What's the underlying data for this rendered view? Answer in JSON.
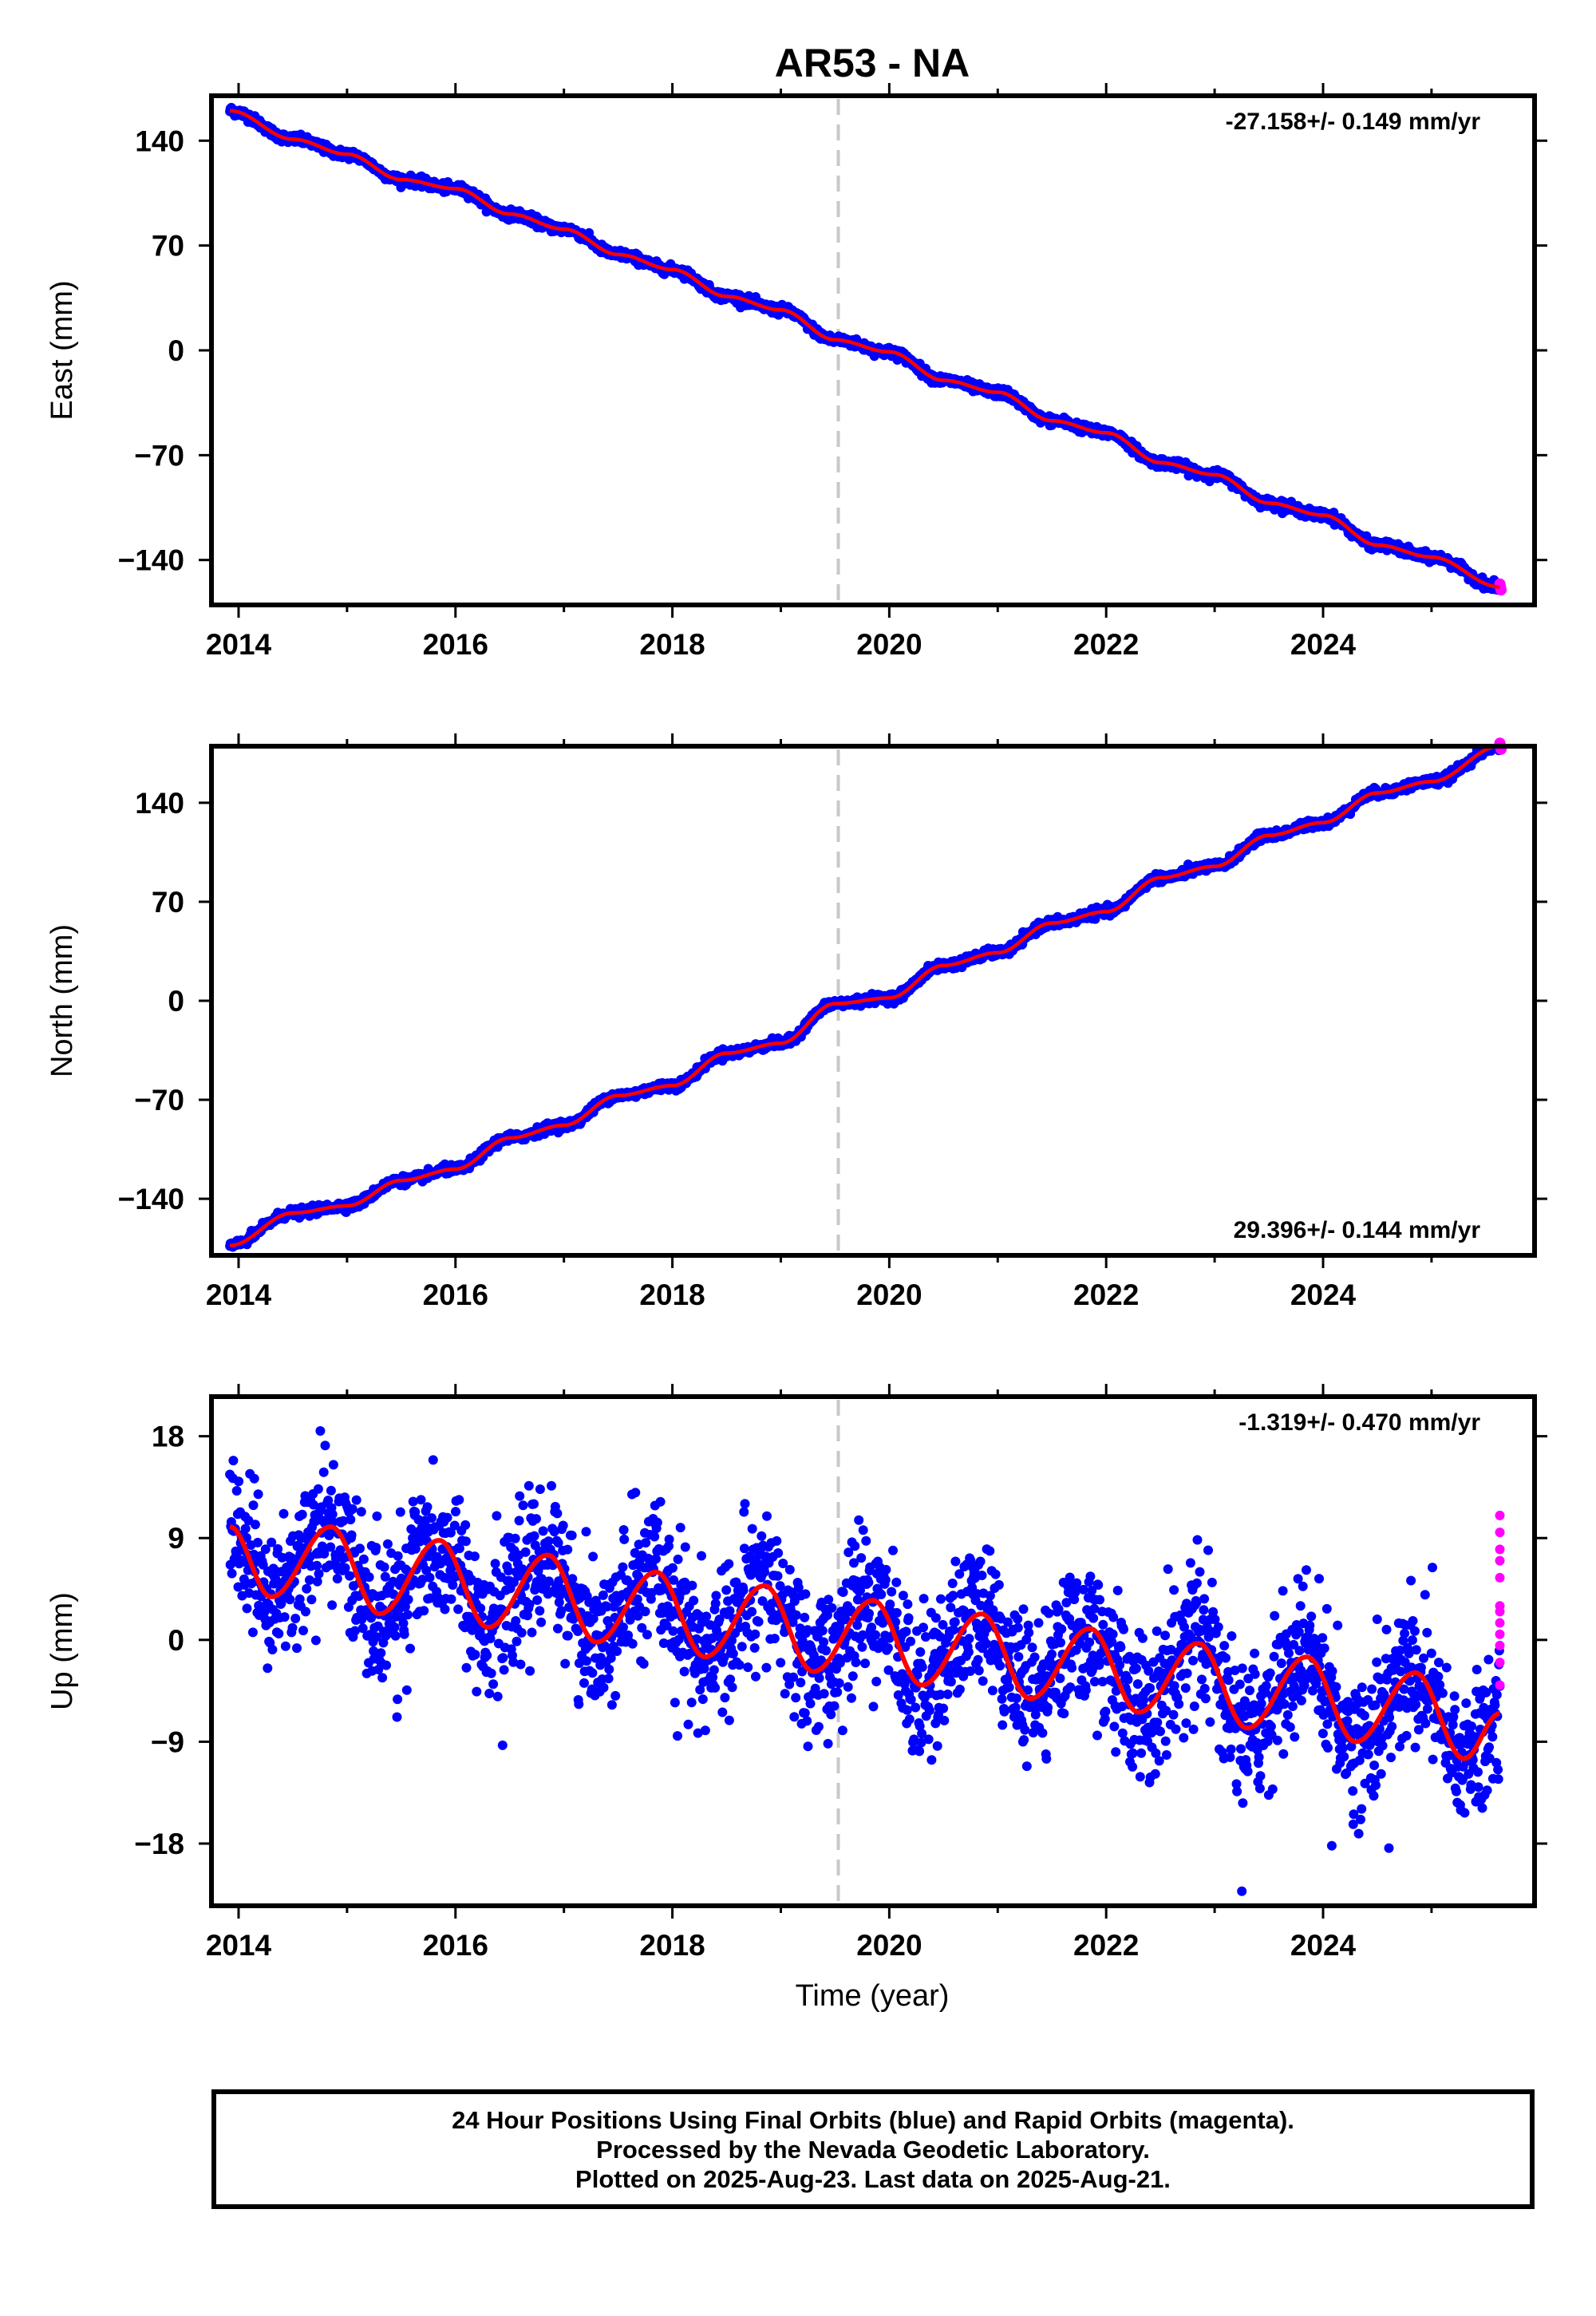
{
  "title": "AR53 - NA",
  "footer": {
    "line1": "24 Hour Positions Using Final Orbits (blue) and Rapid Orbits (magenta).",
    "line2": "Processed by the Nevada Geodetic Laboratory.",
    "line3": "Plotted on 2025-Aug-23. Last data on 2025-Aug-21."
  },
  "chart_data": [
    {
      "type": "scatter",
      "ylabel": "East (mm)",
      "xlabel": "",
      "rate_label": "-27.158+/- 0.149 mm/yr",
      "rate_label_position": "top-right",
      "xlim": [
        2013.75,
        2025.95
      ],
      "ylim": [
        -170,
        170
      ],
      "xticks": [
        2014,
        2016,
        2018,
        2020,
        2022,
        2024
      ],
      "yticks": [
        140,
        70,
        0,
        -70,
        -140
      ],
      "ytick_labels": [
        "140",
        "70",
        "0",
        "−70",
        "−140"
      ],
      "vline": 2019.53,
      "data_range": [
        2013.92,
        2025.63
      ],
      "trend": {
        "start": 160,
        "end": -158
      },
      "seasonal": {
        "amp": 2.5,
        "noise": 1.5
      },
      "colors": {
        "final": "#0000ff",
        "rapid": "#ff00ff",
        "model": "#ff0000"
      },
      "model_points": [
        [
          2013.92,
          160
        ],
        [
          2014.5,
          141
        ],
        [
          2015.0,
          131
        ],
        [
          2015.5,
          114
        ],
        [
          2016.0,
          108
        ],
        [
          2016.5,
          91
        ],
        [
          2017.0,
          81
        ],
        [
          2017.5,
          64
        ],
        [
          2018.0,
          54
        ],
        [
          2018.5,
          36
        ],
        [
          2019.0,
          27
        ],
        [
          2019.5,
          7
        ],
        [
          2020.0,
          -1
        ],
        [
          2020.5,
          -20
        ],
        [
          2021.0,
          -28
        ],
        [
          2021.5,
          -47
        ],
        [
          2022.0,
          -55
        ],
        [
          2022.5,
          -75
        ],
        [
          2023.0,
          -83
        ],
        [
          2023.5,
          -102
        ],
        [
          2024.0,
          -110
        ],
        [
          2024.5,
          -130
        ],
        [
          2025.0,
          -138
        ],
        [
          2025.63,
          -158
        ]
      ]
    },
    {
      "type": "scatter",
      "ylabel": "North (mm)",
      "xlabel": "",
      "rate_label": "29.396+/- 0.144 mm/yr",
      "rate_label_position": "bottom-right",
      "xlim": [
        2013.75,
        2025.95
      ],
      "ylim": [
        -180,
        180
      ],
      "xticks": [
        2014,
        2016,
        2018,
        2020,
        2022,
        2024
      ],
      "yticks": [
        140,
        70,
        0,
        -70,
        -140
      ],
      "ytick_labels": [
        "140",
        "70",
        "0",
        "−70",
        "−140"
      ],
      "vline": 2019.53,
      "data_range": [
        2013.92,
        2025.63
      ],
      "trend": {
        "start": -173,
        "end": 180
      },
      "seasonal": {
        "amp": 3,
        "noise": 1.5
      },
      "colors": {
        "final": "#0000ff",
        "rapid": "#ff00ff",
        "model": "#ff0000"
      },
      "model_points": [
        [
          2013.92,
          -173
        ],
        [
          2014.5,
          -150
        ],
        [
          2015.0,
          -145
        ],
        [
          2015.5,
          -127
        ],
        [
          2016.0,
          -119
        ],
        [
          2016.5,
          -97
        ],
        [
          2017.0,
          -88
        ],
        [
          2017.5,
          -67
        ],
        [
          2018.0,
          -60
        ],
        [
          2018.5,
          -37
        ],
        [
          2019.0,
          -30
        ],
        [
          2019.5,
          -2
        ],
        [
          2020.0,
          2
        ],
        [
          2020.5,
          25
        ],
        [
          2021.0,
          34
        ],
        [
          2021.5,
          55
        ],
        [
          2022.0,
          63
        ],
        [
          2022.5,
          87
        ],
        [
          2023.0,
          95
        ],
        [
          2023.5,
          117
        ],
        [
          2024.0,
          126
        ],
        [
          2024.5,
          147
        ],
        [
          2025.0,
          155
        ],
        [
          2025.63,
          180
        ]
      ]
    },
    {
      "type": "scatter",
      "ylabel": "Up (mm)",
      "xlabel": "Time (year)",
      "rate_label": "-1.319+/- 0.470 mm/yr",
      "rate_label_position": "top-right",
      "xlim": [
        2013.75,
        2025.95
      ],
      "ylim": [
        -23.5,
        21.5
      ],
      "xticks": [
        2014,
        2016,
        2018,
        2020,
        2022,
        2024
      ],
      "yticks": [
        18,
        9,
        0,
        -9,
        -18
      ],
      "ytick_labels": [
        "18",
        "9",
        "0",
        "−9",
        "−18"
      ],
      "vline": 2019.53,
      "data_range": [
        2013.92,
        2025.63
      ],
      "trend": {
        "start": 6.8,
        "end": -8.5
      },
      "seasonal": {
        "amp": 3.5,
        "noise": 3.2
      },
      "colors": {
        "final": "#0000ff",
        "rapid": "#ff00ff",
        "model": "#ff0000"
      },
      "model_points": [
        [
          2013.92,
          10
        ],
        [
          2014.3,
          3.8
        ],
        [
          2014.85,
          10
        ],
        [
          2015.3,
          2.3
        ],
        [
          2015.85,
          8.8
        ],
        [
          2016.3,
          1.1
        ],
        [
          2016.85,
          7.5
        ],
        [
          2017.3,
          -0.2
        ],
        [
          2017.85,
          6
        ],
        [
          2018.3,
          -1.5
        ],
        [
          2018.85,
          4.8
        ],
        [
          2019.3,
          -2.8
        ],
        [
          2019.85,
          3.5
        ],
        [
          2020.3,
          -4
        ],
        [
          2020.85,
          2.3
        ],
        [
          2021.3,
          -5.2
        ],
        [
          2021.85,
          1
        ],
        [
          2022.3,
          -6.4
        ],
        [
          2022.85,
          -0.3
        ],
        [
          2023.3,
          -7.8
        ],
        [
          2023.85,
          -1.5
        ],
        [
          2024.3,
          -9
        ],
        [
          2024.85,
          -2.9
        ],
        [
          2025.3,
          -10.5
        ],
        [
          2025.63,
          -6.5
        ]
      ],
      "rapid_points": [
        [
          2025.63,
          11
        ],
        [
          2025.63,
          9.5
        ],
        [
          2025.63,
          8
        ],
        [
          2025.63,
          7
        ],
        [
          2025.63,
          5.5
        ],
        [
          2025.63,
          3
        ],
        [
          2025.63,
          2.5
        ],
        [
          2025.63,
          1.5
        ],
        [
          2025.63,
          0.5
        ],
        [
          2025.63,
          -0.5
        ],
        [
          2025.63,
          -2
        ],
        [
          2025.63,
          -4
        ]
      ]
    }
  ]
}
